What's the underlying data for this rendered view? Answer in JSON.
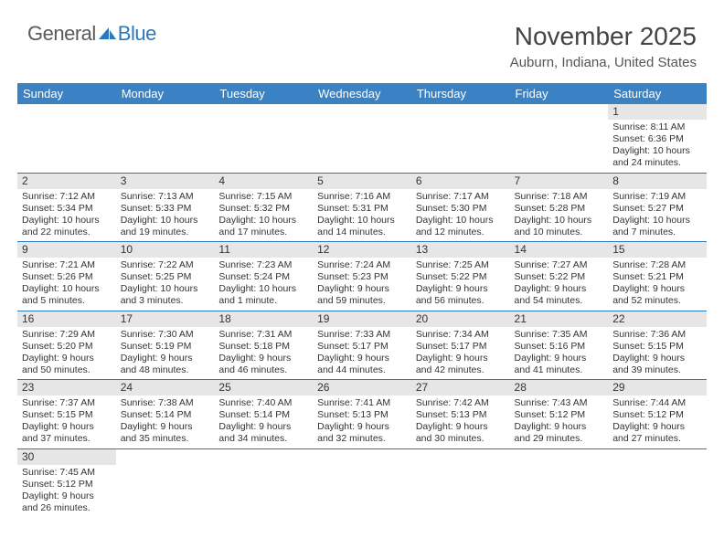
{
  "logo": {
    "text1": "General",
    "text2": "Blue"
  },
  "title": "November 2025",
  "location": "Auburn, Indiana, United States",
  "colors": {
    "header_bg": "#3b82c4",
    "header_text": "#ffffff",
    "daynum_bg": "#e6e6e6",
    "border": "#2a78bd",
    "logo_accent": "#2a78bd"
  },
  "weekdays": [
    "Sunday",
    "Monday",
    "Tuesday",
    "Wednesday",
    "Thursday",
    "Friday",
    "Saturday"
  ],
  "weeks": [
    [
      null,
      null,
      null,
      null,
      null,
      null,
      {
        "n": "1",
        "sunrise": "Sunrise: 8:11 AM",
        "sunset": "Sunset: 6:36 PM",
        "daylight": "Daylight: 10 hours and 24 minutes."
      }
    ],
    [
      {
        "n": "2",
        "sunrise": "Sunrise: 7:12 AM",
        "sunset": "Sunset: 5:34 PM",
        "daylight": "Daylight: 10 hours and 22 minutes."
      },
      {
        "n": "3",
        "sunrise": "Sunrise: 7:13 AM",
        "sunset": "Sunset: 5:33 PM",
        "daylight": "Daylight: 10 hours and 19 minutes."
      },
      {
        "n": "4",
        "sunrise": "Sunrise: 7:15 AM",
        "sunset": "Sunset: 5:32 PM",
        "daylight": "Daylight: 10 hours and 17 minutes."
      },
      {
        "n": "5",
        "sunrise": "Sunrise: 7:16 AM",
        "sunset": "Sunset: 5:31 PM",
        "daylight": "Daylight: 10 hours and 14 minutes."
      },
      {
        "n": "6",
        "sunrise": "Sunrise: 7:17 AM",
        "sunset": "Sunset: 5:30 PM",
        "daylight": "Daylight: 10 hours and 12 minutes."
      },
      {
        "n": "7",
        "sunrise": "Sunrise: 7:18 AM",
        "sunset": "Sunset: 5:28 PM",
        "daylight": "Daylight: 10 hours and 10 minutes."
      },
      {
        "n": "8",
        "sunrise": "Sunrise: 7:19 AM",
        "sunset": "Sunset: 5:27 PM",
        "daylight": "Daylight: 10 hours and 7 minutes."
      }
    ],
    [
      {
        "n": "9",
        "sunrise": "Sunrise: 7:21 AM",
        "sunset": "Sunset: 5:26 PM",
        "daylight": "Daylight: 10 hours and 5 minutes."
      },
      {
        "n": "10",
        "sunrise": "Sunrise: 7:22 AM",
        "sunset": "Sunset: 5:25 PM",
        "daylight": "Daylight: 10 hours and 3 minutes."
      },
      {
        "n": "11",
        "sunrise": "Sunrise: 7:23 AM",
        "sunset": "Sunset: 5:24 PM",
        "daylight": "Daylight: 10 hours and 1 minute."
      },
      {
        "n": "12",
        "sunrise": "Sunrise: 7:24 AM",
        "sunset": "Sunset: 5:23 PM",
        "daylight": "Daylight: 9 hours and 59 minutes."
      },
      {
        "n": "13",
        "sunrise": "Sunrise: 7:25 AM",
        "sunset": "Sunset: 5:22 PM",
        "daylight": "Daylight: 9 hours and 56 minutes."
      },
      {
        "n": "14",
        "sunrise": "Sunrise: 7:27 AM",
        "sunset": "Sunset: 5:22 PM",
        "daylight": "Daylight: 9 hours and 54 minutes."
      },
      {
        "n": "15",
        "sunrise": "Sunrise: 7:28 AM",
        "sunset": "Sunset: 5:21 PM",
        "daylight": "Daylight: 9 hours and 52 minutes."
      }
    ],
    [
      {
        "n": "16",
        "sunrise": "Sunrise: 7:29 AM",
        "sunset": "Sunset: 5:20 PM",
        "daylight": "Daylight: 9 hours and 50 minutes."
      },
      {
        "n": "17",
        "sunrise": "Sunrise: 7:30 AM",
        "sunset": "Sunset: 5:19 PM",
        "daylight": "Daylight: 9 hours and 48 minutes."
      },
      {
        "n": "18",
        "sunrise": "Sunrise: 7:31 AM",
        "sunset": "Sunset: 5:18 PM",
        "daylight": "Daylight: 9 hours and 46 minutes."
      },
      {
        "n": "19",
        "sunrise": "Sunrise: 7:33 AM",
        "sunset": "Sunset: 5:17 PM",
        "daylight": "Daylight: 9 hours and 44 minutes."
      },
      {
        "n": "20",
        "sunrise": "Sunrise: 7:34 AM",
        "sunset": "Sunset: 5:17 PM",
        "daylight": "Daylight: 9 hours and 42 minutes."
      },
      {
        "n": "21",
        "sunrise": "Sunrise: 7:35 AM",
        "sunset": "Sunset: 5:16 PM",
        "daylight": "Daylight: 9 hours and 41 minutes."
      },
      {
        "n": "22",
        "sunrise": "Sunrise: 7:36 AM",
        "sunset": "Sunset: 5:15 PM",
        "daylight": "Daylight: 9 hours and 39 minutes."
      }
    ],
    [
      {
        "n": "23",
        "sunrise": "Sunrise: 7:37 AM",
        "sunset": "Sunset: 5:15 PM",
        "daylight": "Daylight: 9 hours and 37 minutes."
      },
      {
        "n": "24",
        "sunrise": "Sunrise: 7:38 AM",
        "sunset": "Sunset: 5:14 PM",
        "daylight": "Daylight: 9 hours and 35 minutes."
      },
      {
        "n": "25",
        "sunrise": "Sunrise: 7:40 AM",
        "sunset": "Sunset: 5:14 PM",
        "daylight": "Daylight: 9 hours and 34 minutes."
      },
      {
        "n": "26",
        "sunrise": "Sunrise: 7:41 AM",
        "sunset": "Sunset: 5:13 PM",
        "daylight": "Daylight: 9 hours and 32 minutes."
      },
      {
        "n": "27",
        "sunrise": "Sunrise: 7:42 AM",
        "sunset": "Sunset: 5:13 PM",
        "daylight": "Daylight: 9 hours and 30 minutes."
      },
      {
        "n": "28",
        "sunrise": "Sunrise: 7:43 AM",
        "sunset": "Sunset: 5:12 PM",
        "daylight": "Daylight: 9 hours and 29 minutes."
      },
      {
        "n": "29",
        "sunrise": "Sunrise: 7:44 AM",
        "sunset": "Sunset: 5:12 PM",
        "daylight": "Daylight: 9 hours and 27 minutes."
      }
    ],
    [
      {
        "n": "30",
        "sunrise": "Sunrise: 7:45 AM",
        "sunset": "Sunset: 5:12 PM",
        "daylight": "Daylight: 9 hours and 26 minutes."
      },
      null,
      null,
      null,
      null,
      null,
      null
    ]
  ]
}
